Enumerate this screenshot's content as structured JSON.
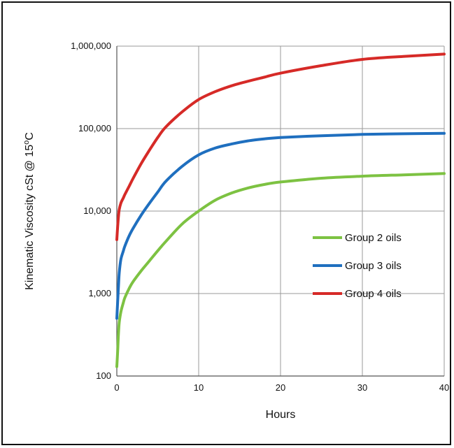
{
  "chart_data": {
    "type": "line",
    "xlabel": "Hours",
    "ylabel_main": "Kinematic Viscosity cSt @ 15",
    "ylabel_sup": "o",
    "ylabel_unit": "C",
    "x_scale": "linear",
    "y_scale": "log",
    "xlim": [
      0,
      40
    ],
    "ylim": [
      100,
      1000000
    ],
    "x_ticks": [
      0,
      10,
      20,
      30,
      40
    ],
    "x_tick_labels": [
      "0",
      "10",
      "20",
      "30",
      "40"
    ],
    "y_ticks": [
      100,
      1000,
      10000,
      100000,
      1000000
    ],
    "y_tick_labels": [
      "100",
      "1,000",
      "10,000",
      "100,000",
      "1,000,000"
    ],
    "grid": true,
    "legend_position": "right-center",
    "series": [
      {
        "name": "Group 2 oils",
        "color": "#7dc242",
        "x": [
          0,
          0.1,
          0.2,
          0.3,
          0.5,
          0.8,
          1,
          1.5,
          2,
          3,
          4,
          5,
          6,
          8,
          10,
          12,
          14,
          16,
          18,
          20,
          25,
          30,
          35,
          40
        ],
        "y": [
          130,
          200,
          320,
          450,
          600,
          780,
          900,
          1150,
          1400,
          1900,
          2500,
          3300,
          4300,
          7000,
          10000,
          13500,
          16500,
          19000,
          21000,
          22500,
          25000,
          26500,
          27500,
          28500
        ]
      },
      {
        "name": "Group 3 oils",
        "color": "#1f6fbf",
        "x": [
          0,
          0.1,
          0.2,
          0.3,
          0.5,
          0.8,
          1,
          1.5,
          2,
          3,
          4,
          5,
          6,
          8,
          10,
          12,
          14,
          16,
          18,
          20,
          25,
          30,
          35,
          40
        ],
        "y": [
          500,
          800,
          1200,
          1800,
          2600,
          3300,
          3800,
          5000,
          6200,
          9000,
          12500,
          17000,
          23000,
          35000,
          48000,
          58000,
          65000,
          71000,
          75000,
          78000,
          82000,
          85000,
          86500,
          87500
        ]
      },
      {
        "name": "Group 4 oils",
        "color": "#d62a27",
        "x": [
          0,
          0.1,
          0.2,
          0.3,
          0.5,
          0.8,
          1,
          1.5,
          2,
          3,
          4,
          5,
          6,
          8,
          10,
          12,
          14,
          16,
          18,
          20,
          25,
          30,
          35,
          40
        ],
        "y": [
          4500,
          6500,
          8500,
          10500,
          12500,
          14500,
          16000,
          20000,
          25000,
          38000,
          55000,
          78000,
          105000,
          160000,
          225000,
          280000,
          330000,
          375000,
          420000,
          470000,
          580000,
          690000,
          750000,
          800000
        ]
      }
    ]
  }
}
